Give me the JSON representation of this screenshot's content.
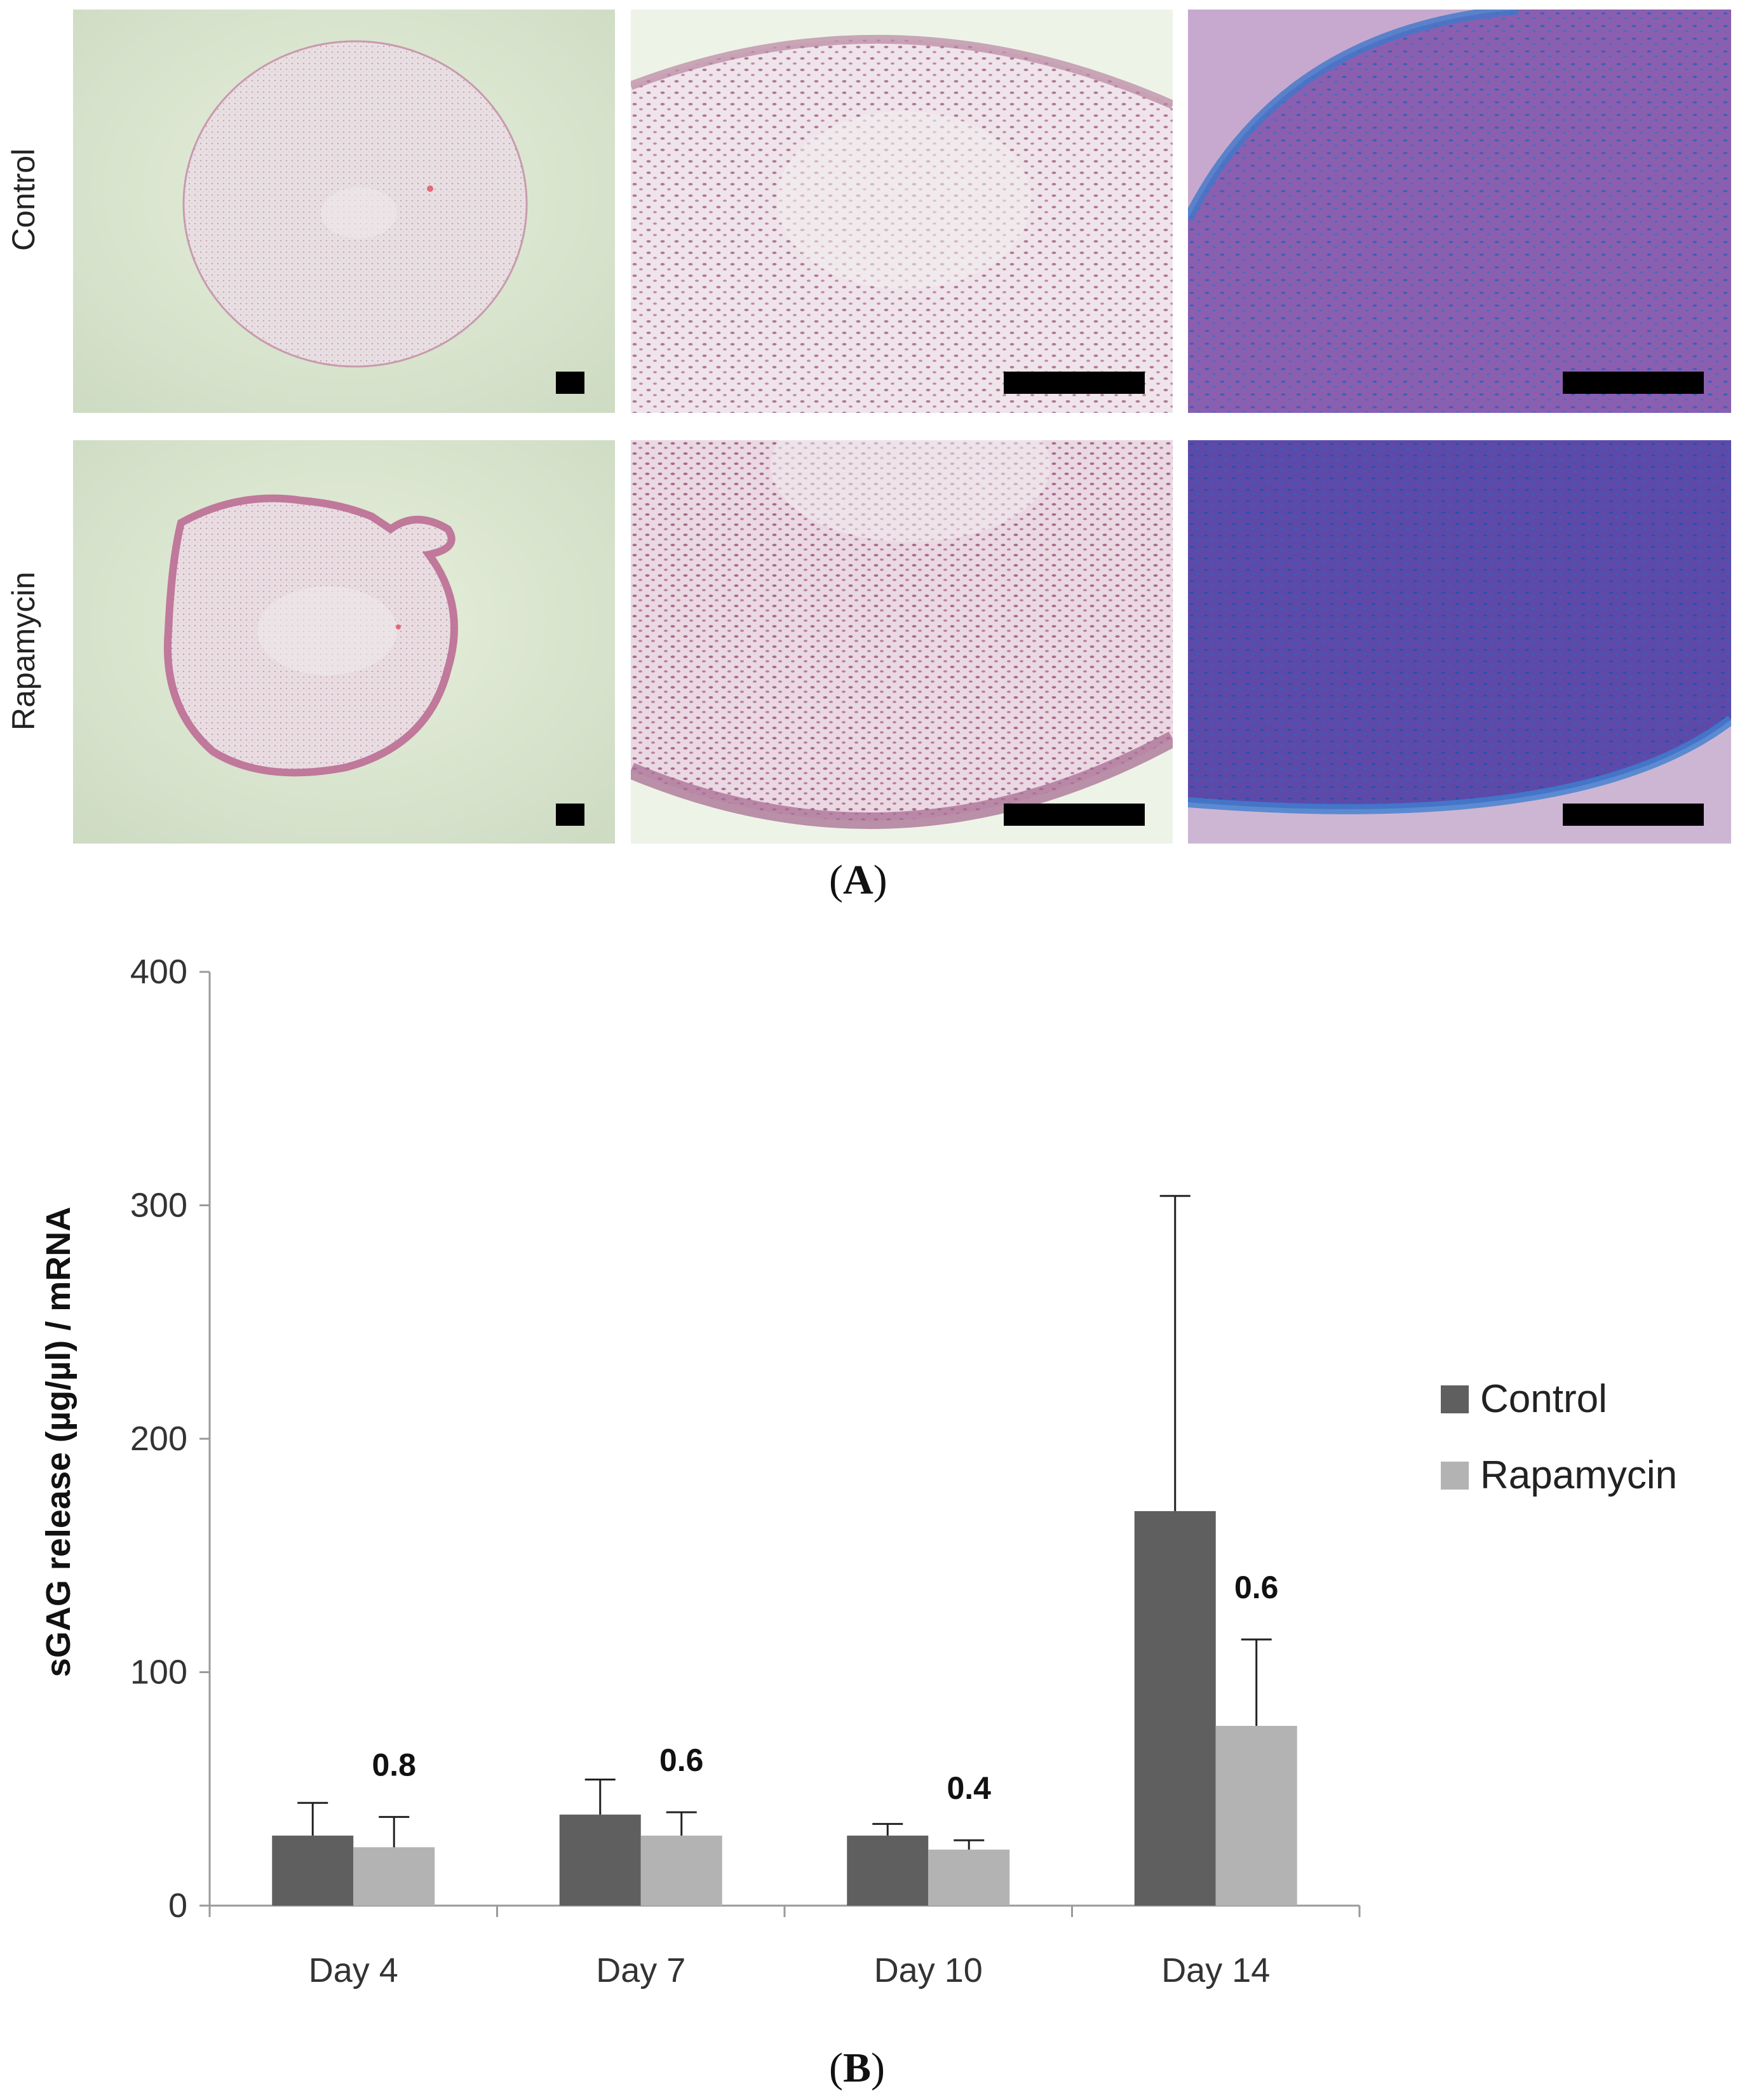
{
  "figure_a": {
    "row_labels": [
      "Control",
      "Rapamycin"
    ],
    "panel_label_open": "(",
    "panel_label_letter": "A",
    "panel_label_close": ")"
  },
  "figure_b": {
    "panel_label_open": "(",
    "panel_label_letter": "B",
    "panel_label_close": ")"
  },
  "chart_data": {
    "type": "bar",
    "categories": [
      "Day 4",
      "Day 7",
      "Day 10",
      "Day 14"
    ],
    "series": [
      {
        "name": "Control",
        "values": [
          30,
          39,
          30,
          169
        ],
        "errors": [
          14,
          15,
          5,
          135
        ],
        "color": "#5f5f5f"
      },
      {
        "name": "Rapamycin",
        "values": [
          25,
          30,
          24,
          77
        ],
        "errors": [
          13,
          10,
          4,
          37
        ],
        "color": "#b3b3b3"
      }
    ],
    "annotations": [
      "0.8",
      "0.6",
      "0.4",
      "0.6"
    ],
    "ylabel": "sGAG release (µg/µl) / mRNA",
    "xlabel": "",
    "ylim": [
      0,
      400
    ],
    "yticks": [
      0,
      100,
      200,
      300,
      400
    ],
    "grid": false,
    "legend_position": "right"
  },
  "colors": {
    "control": "#5f5f5f",
    "rapamycin": "#b3b3b3",
    "axis": "#9a9a9a"
  }
}
